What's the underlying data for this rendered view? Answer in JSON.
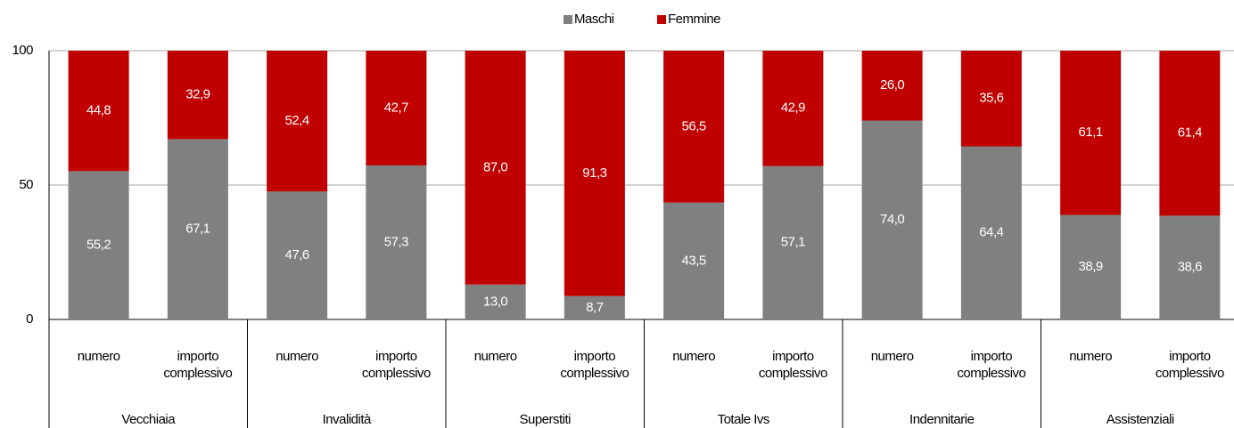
{
  "chart_data": {
    "type": "bar",
    "stacked": true,
    "categories": [
      "numero",
      "importo complessivo",
      "numero",
      "importo complessivo",
      "numero",
      "importo complessivo",
      "numero",
      "importo complessivo",
      "numero",
      "importo complessivo",
      "numero",
      "importo complessivo"
    ],
    "groups": [
      "Vecchiaia",
      "Invalidità",
      "Superstiti",
      "Totale Ivs",
      "Indennitarie",
      "Assistenziali"
    ],
    "series": [
      {
        "name": "Maschi",
        "color": "#808080",
        "values": [
          55.2,
          67.1,
          47.6,
          57.3,
          13.0,
          8.7,
          43.5,
          57.1,
          74.0,
          64.4,
          38.9,
          38.6
        ],
        "value_labels": [
          "55,2",
          "67,1",
          "47,6",
          "57,3",
          "13,0",
          "8,7",
          "43,5",
          "57,1",
          "74,0",
          "64,4",
          "38,9",
          "38,6"
        ]
      },
      {
        "name": "Femmine",
        "color": "#c00000",
        "values": [
          44.8,
          32.9,
          52.4,
          42.7,
          87.0,
          91.3,
          56.5,
          42.9,
          26.0,
          35.6,
          61.1,
          61.4
        ],
        "value_labels": [
          "44,8",
          "32,9",
          "52,4",
          "42,7",
          "87,0",
          "91,3",
          "56,5",
          "42,9",
          "26,0",
          "35,6",
          "61,1",
          "61,4"
        ]
      }
    ],
    "ylim": [
      0,
      100
    ],
    "yticks": [
      0,
      50,
      100
    ],
    "grid": true
  }
}
